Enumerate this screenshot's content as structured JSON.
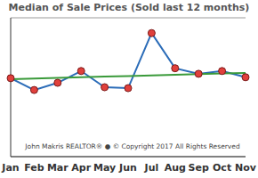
{
  "chart_data": {
    "type": "line",
    "title": "Median of Sale Prices (Sold last 12 months)",
    "annotations": [
      "John Makris REALTOR®  ●  © Copyright 2017 All Rights Reserved"
    ],
    "categories": [
      "Jan",
      "Feb",
      "Mar",
      "Apr",
      "May",
      "Jun",
      "Jul",
      "Aug",
      "Sep",
      "Oct",
      "Nov"
    ],
    "series": [
      {
        "color": "#2b6cb8",
        "marker": "circle",
        "values": [
          339000,
          288000,
          319000,
          370000,
          300000,
          296000,
          534000,
          382000,
          358000,
          370000,
          343000
        ]
      },
      {
        "color": "#3a9a3a",
        "line_style": "solid",
        "values": [
          335000,
          337700,
          340400,
          343100,
          345800,
          348500,
          351200,
          353900,
          356600,
          359300,
          362000
        ]
      }
    ],
    "ylim": [
      0,
      600000
    ],
    "yticks": [
      0,
      100000,
      200000,
      300000,
      400000,
      500000,
      600000
    ],
    "grid": true,
    "tick_labels": "x"
  }
}
